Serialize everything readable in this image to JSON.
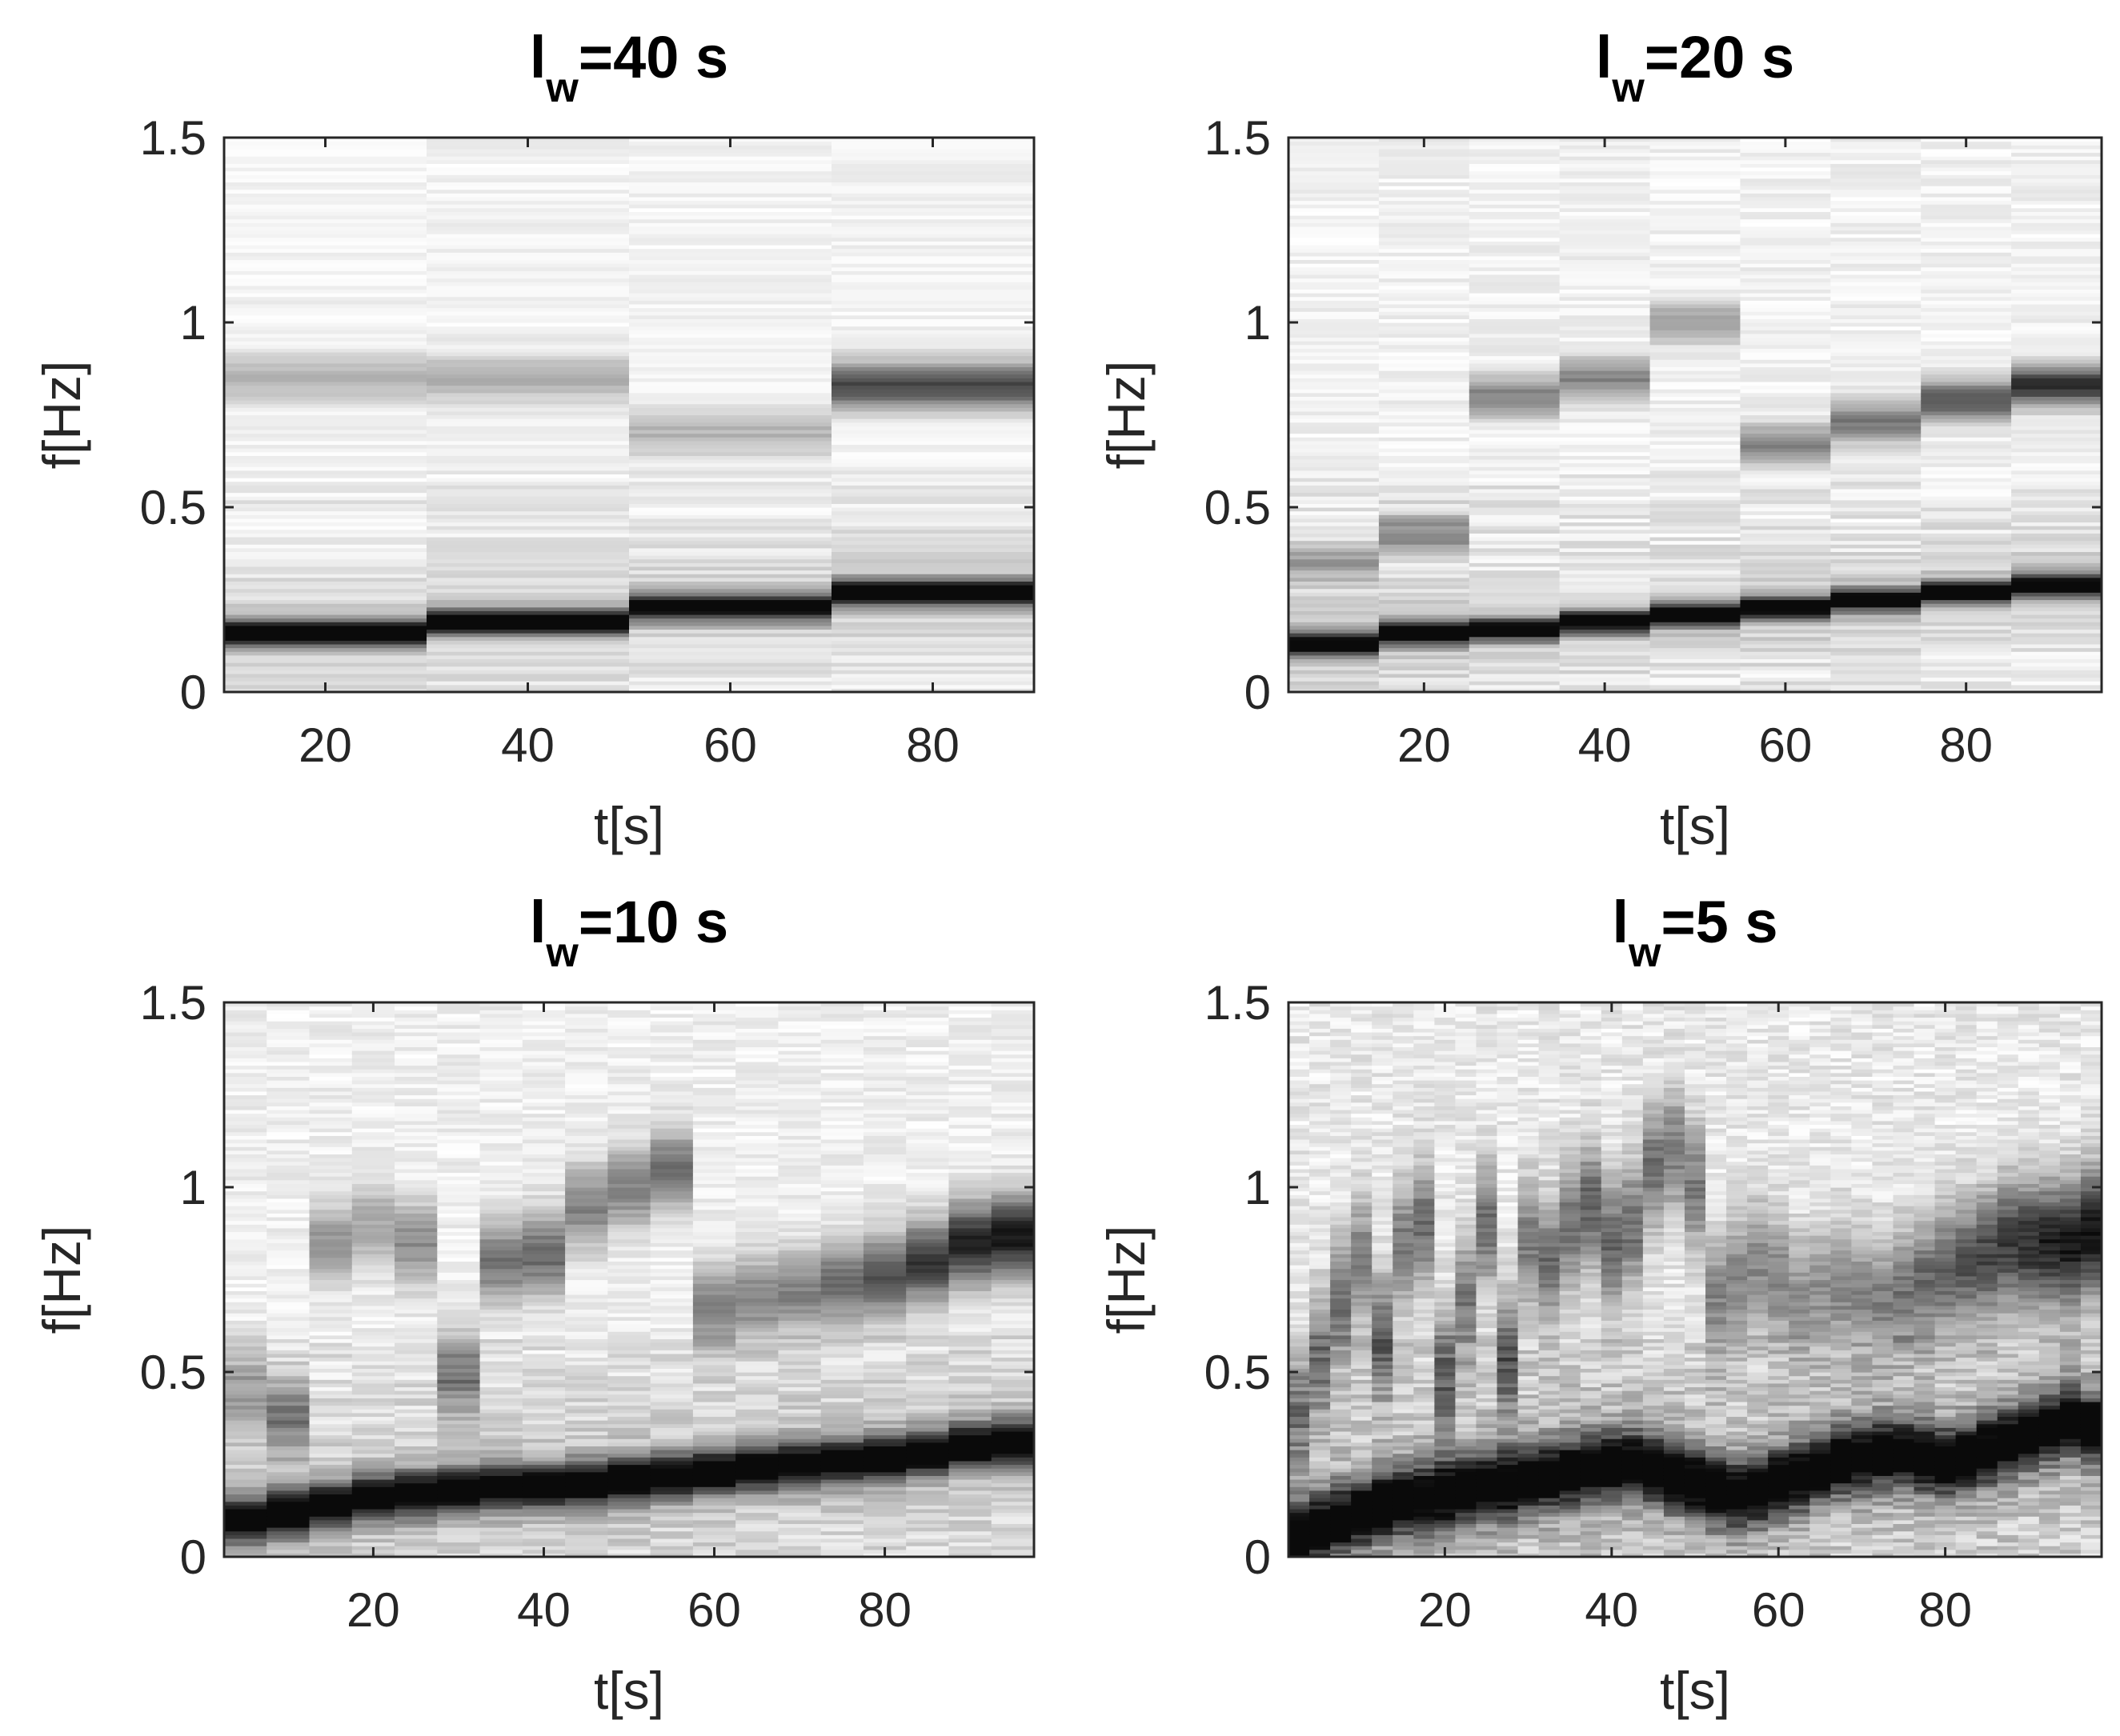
{
  "chart_data": [
    {
      "type": "heatmap",
      "title": {
        "main": "l",
        "sub": "w",
        "tail": "=40 s"
      },
      "window_s": 40,
      "xlabel": "t[s]",
      "ylabel": "f[Hz]",
      "xlim": [
        10,
        90
      ],
      "ylim": [
        0,
        1.5
      ],
      "xticks": [
        20,
        40,
        60,
        80
      ],
      "xticklabels": [
        "20",
        "40",
        "60",
        "80"
      ],
      "yticks": [
        0,
        0.5,
        1,
        1.5
      ],
      "yticklabels": [
        "0",
        "0.5",
        "1",
        "1.5"
      ],
      "colormap": "gray-inverted",
      "segments_t": [
        [
          10,
          30
        ],
        [
          30,
          50
        ],
        [
          50,
          70
        ],
        [
          70,
          90
        ]
      ],
      "ridge_fundamental_hz": [
        0.16,
        0.19,
        0.23,
        0.27
      ],
      "ridge_harmonic_hz": [
        0.85,
        0.85,
        0.7,
        0.83
      ],
      "harmonic_strength": [
        0.25,
        0.28,
        0.25,
        0.7
      ],
      "noise": 0.12
    },
    {
      "type": "heatmap",
      "title": {
        "main": "l",
        "sub": "w",
        "tail": "=20 s"
      },
      "window_s": 20,
      "xlabel": "t[s]",
      "ylabel": "f[Hz]",
      "xlim": [
        5,
        95
      ],
      "ylim": [
        0,
        1.5
      ],
      "xticks": [
        20,
        40,
        60,
        80
      ],
      "xticklabels": [
        "20",
        "40",
        "60",
        "80"
      ],
      "yticks": [
        0,
        0.5,
        1,
        1.5
      ],
      "yticklabels": [
        "0",
        "0.5",
        "1",
        "1.5"
      ],
      "colormap": "gray-inverted",
      "segments_t": [
        [
          5,
          15
        ],
        [
          15,
          25
        ],
        [
          25,
          35
        ],
        [
          35,
          45
        ],
        [
          45,
          55
        ],
        [
          55,
          65
        ],
        [
          65,
          75
        ],
        [
          75,
          85
        ],
        [
          85,
          95
        ]
      ],
      "ridge_fundamental_hz": [
        0.13,
        0.16,
        0.17,
        0.19,
        0.21,
        0.23,
        0.25,
        0.27,
        0.29
      ],
      "ridge_harmonic_hz": [
        0.35,
        0.43,
        0.8,
        0.85,
        1.0,
        0.67,
        0.73,
        0.79,
        0.83
      ],
      "harmonic_strength": [
        0.3,
        0.4,
        0.45,
        0.45,
        0.35,
        0.45,
        0.5,
        0.65,
        0.8
      ],
      "noise": 0.14
    },
    {
      "type": "heatmap",
      "title": {
        "main": "l",
        "sub": "w",
        "tail": "=10 s"
      },
      "window_s": 10,
      "xlabel": "t[s]",
      "ylabel": "f[Hz]",
      "xlim": [
        2.5,
        97.5
      ],
      "ylim": [
        0,
        1.5
      ],
      "xticks": [
        20,
        40,
        60,
        80
      ],
      "xticklabels": [
        "20",
        "40",
        "60",
        "80"
      ],
      "yticks": [
        0,
        0.5,
        1,
        1.5
      ],
      "yticklabels": [
        "0",
        "0.5",
        "1",
        "1.5"
      ],
      "colormap": "gray-inverted",
      "segments_t": [
        [
          2.5,
          7.5
        ],
        [
          7.5,
          12.5
        ],
        [
          12.5,
          17.5
        ],
        [
          17.5,
          22.5
        ],
        [
          22.5,
          27.5
        ],
        [
          27.5,
          32.5
        ],
        [
          32.5,
          37.5
        ],
        [
          37.5,
          42.5
        ],
        [
          42.5,
          47.5
        ],
        [
          47.5,
          52.5
        ],
        [
          52.5,
          57.5
        ],
        [
          57.5,
          62.5
        ],
        [
          62.5,
          67.5
        ],
        [
          67.5,
          72.5
        ],
        [
          72.5,
          77.5
        ],
        [
          77.5,
          82.5
        ],
        [
          82.5,
          87.5
        ],
        [
          87.5,
          92.5
        ],
        [
          92.5,
          97.5
        ]
      ],
      "ridge_fundamental_hz": [
        0.1,
        0.12,
        0.14,
        0.16,
        0.17,
        0.18,
        0.19,
        0.19,
        0.2,
        0.21,
        0.22,
        0.23,
        0.24,
        0.25,
        0.26,
        0.27,
        0.28,
        0.3,
        0.31
      ],
      "ridge_harmonic_hz": [
        0.45,
        0.38,
        0.85,
        0.9,
        0.85,
        0.5,
        0.8,
        0.82,
        0.95,
        1.0,
        1.05,
        0.68,
        0.7,
        0.72,
        0.74,
        0.76,
        0.8,
        0.85,
        0.87
      ],
      "harmonic_strength": [
        0.3,
        0.4,
        0.35,
        0.3,
        0.4,
        0.45,
        0.5,
        0.55,
        0.45,
        0.45,
        0.5,
        0.45,
        0.45,
        0.45,
        0.55,
        0.65,
        0.75,
        0.85,
        0.9
      ],
      "noise": 0.16
    },
    {
      "type": "heatmap",
      "title": {
        "main": "l",
        "sub": "w",
        "tail": "=5 s"
      },
      "window_s": 5,
      "xlabel": "t[s]",
      "ylabel": "f[Hz]",
      "xlim": [
        1.25,
        98.75
      ],
      "ylim": [
        0,
        1.5
      ],
      "xticks": [
        20,
        40,
        60,
        80
      ],
      "xticklabels": [
        "20",
        "40",
        "60",
        "80"
      ],
      "yticks": [
        0,
        0.5,
        1,
        1.5
      ],
      "yticklabels": [
        "0",
        "0.5",
        "1",
        "1.5"
      ],
      "colormap": "gray-inverted",
      "segments_t": [
        [
          1.25,
          3.75
        ],
        [
          3.75,
          6.25
        ],
        [
          6.25,
          8.75
        ],
        [
          8.75,
          11.25
        ],
        [
          11.25,
          13.75
        ],
        [
          13.75,
          16.25
        ],
        [
          16.25,
          18.75
        ],
        [
          18.75,
          21.25
        ],
        [
          21.25,
          23.75
        ],
        [
          23.75,
          26.25
        ],
        [
          26.25,
          28.75
        ],
        [
          28.75,
          31.25
        ],
        [
          31.25,
          33.75
        ],
        [
          33.75,
          36.25
        ],
        [
          36.25,
          38.75
        ],
        [
          38.75,
          41.25
        ],
        [
          41.25,
          43.75
        ],
        [
          43.75,
          46.25
        ],
        [
          46.25,
          48.75
        ],
        [
          48.75,
          51.25
        ],
        [
          51.25,
          53.75
        ],
        [
          53.75,
          56.25
        ],
        [
          56.25,
          58.75
        ],
        [
          58.75,
          61.25
        ],
        [
          61.25,
          63.75
        ],
        [
          63.75,
          66.25
        ],
        [
          66.25,
          68.75
        ],
        [
          68.75,
          71.25
        ],
        [
          71.25,
          73.75
        ],
        [
          73.75,
          76.25
        ],
        [
          76.25,
          78.75
        ],
        [
          78.75,
          81.25
        ],
        [
          81.25,
          83.75
        ],
        [
          83.75,
          86.25
        ],
        [
          86.25,
          88.75
        ],
        [
          88.75,
          91.25
        ],
        [
          91.25,
          93.75
        ],
        [
          93.75,
          96.25
        ],
        [
          96.25,
          98.75
        ]
      ],
      "ridge_fundamental_hz": [
        0.05,
        0.08,
        0.1,
        0.12,
        0.14,
        0.15,
        0.16,
        0.17,
        0.18,
        0.19,
        0.2,
        0.21,
        0.22,
        0.23,
        0.24,
        0.25,
        0.25,
        0.24,
        0.22,
        0.2,
        0.18,
        0.17,
        0.18,
        0.2,
        0.22,
        0.24,
        0.26,
        0.27,
        0.28,
        0.28,
        0.27,
        0.26,
        0.27,
        0.29,
        0.31,
        0.33,
        0.35,
        0.37,
        0.35
      ],
      "ridge_harmonic_hz": [
        0.4,
        0.55,
        0.7,
        0.8,
        0.6,
        0.85,
        0.9,
        0.5,
        0.7,
        0.9,
        0.55,
        0.85,
        0.8,
        0.9,
        0.95,
        0.85,
        0.9,
        1.05,
        1.1,
        1.0,
        0.7,
        0.75,
        0.8,
        0.75,
        0.7,
        0.72,
        0.74,
        0.72,
        0.7,
        0.72,
        0.75,
        0.78,
        0.8,
        0.82,
        0.85,
        0.85,
        0.85,
        0.85,
        0.88
      ],
      "harmonic_strength": [
        0.4,
        0.45,
        0.5,
        0.45,
        0.5,
        0.45,
        0.5,
        0.45,
        0.45,
        0.5,
        0.5,
        0.45,
        0.5,
        0.5,
        0.55,
        0.55,
        0.5,
        0.5,
        0.45,
        0.45,
        0.4,
        0.4,
        0.4,
        0.4,
        0.35,
        0.35,
        0.4,
        0.4,
        0.4,
        0.45,
        0.5,
        0.55,
        0.6,
        0.65,
        0.7,
        0.75,
        0.8,
        0.85,
        0.85
      ],
      "noise": 0.22
    }
  ]
}
